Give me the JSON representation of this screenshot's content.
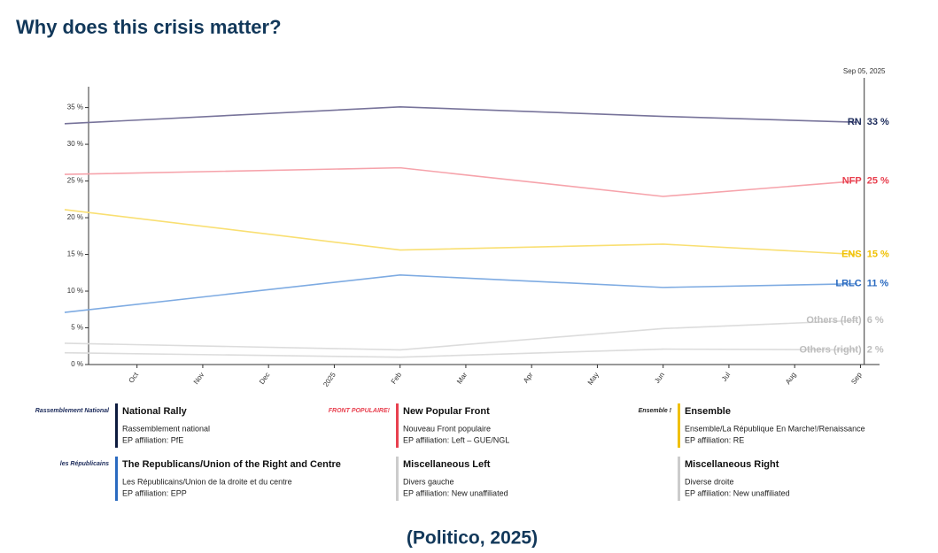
{
  "title": "Why does this crisis matter?",
  "caption": "(Politico, 2025)",
  "chart_data": {
    "type": "line",
    "cursor_label": "Sep 05, 2025",
    "x": [
      -1.1,
      4,
      8,
      10.95
    ],
    "xlim": [
      -1.1,
      11.25
    ],
    "xticks": [
      {
        "value": 0,
        "label": "Oct"
      },
      {
        "value": 1,
        "label": "Nov"
      },
      {
        "value": 2,
        "label": "Dec"
      },
      {
        "value": 3,
        "label": "2025"
      },
      {
        "value": 4,
        "label": "Feb"
      },
      {
        "value": 5,
        "label": "Mar"
      },
      {
        "value": 6,
        "label": "Apr"
      },
      {
        "value": 7,
        "label": "May"
      },
      {
        "value": 8,
        "label": "Jun"
      },
      {
        "value": 9,
        "label": "Jul"
      },
      {
        "value": 10,
        "label": "Aug"
      },
      {
        "value": 11,
        "label": "Sep"
      }
    ],
    "ylim": [
      0,
      37
    ],
    "yticks": [
      {
        "value": 0,
        "label": "0 %"
      },
      {
        "value": 5,
        "label": "5 %"
      },
      {
        "value": 10,
        "label": "10 %"
      },
      {
        "value": 15,
        "label": "15 %"
      },
      {
        "value": 20,
        "label": "20 %"
      },
      {
        "value": 25,
        "label": "25 %"
      },
      {
        "value": 30,
        "label": "30 %"
      },
      {
        "value": 35,
        "label": "35 %"
      }
    ],
    "series": [
      {
        "name": "RN",
        "color": "#77739a",
        "label_color": "#1b2a5a",
        "values": [
          32.8,
          35.1,
          33.8,
          33
        ],
        "value_labels": [
          null,
          null,
          null,
          "33 %"
        ]
      },
      {
        "name": "NFP",
        "color": "#f6a3ab",
        "label_color": "#e8404f",
        "values": [
          25.9,
          26.8,
          22.9,
          25
        ],
        "value_labels": [
          null,
          null,
          null,
          "25 %"
        ]
      },
      {
        "name": "ENS",
        "color": "#f9df72",
        "label_color": "#f0c000",
        "values": [
          21.1,
          15.6,
          16.4,
          15
        ],
        "value_labels": [
          null,
          null,
          null,
          "15 %"
        ]
      },
      {
        "name": "LRLC",
        "color": "#7eabe2",
        "label_color": "#2a6ac0",
        "values": [
          7.1,
          12.2,
          10.5,
          11
        ],
        "value_labels": [
          null,
          null,
          null,
          "11 %"
        ]
      },
      {
        "name": "Others (left)",
        "color": "#dcdcdc",
        "label_color": "#bdbdbd",
        "values": [
          2.9,
          2.0,
          4.9,
          6
        ],
        "value_labels": [
          null,
          null,
          null,
          "6 %"
        ]
      },
      {
        "name": "Others (right)",
        "color": "#dcdcdc",
        "label_color": "#bdbdbd",
        "values": [
          1.6,
          1.0,
          2.1,
          2
        ],
        "value_labels": [
          null,
          null,
          null,
          "2 %"
        ]
      }
    ]
  },
  "parties": [
    {
      "logo": "Rassemblement National",
      "logo_color": "#1b2a5a",
      "name": "National Rally",
      "subtitle": "Rassemblement national",
      "affiliation": "EP affiliation: PfE",
      "color": "#0d1b3e"
    },
    {
      "logo": "FRONT POPULAIRE!",
      "logo_color": "#e8404f",
      "name": "New Popular Front",
      "subtitle": "Nouveau Front populaire",
      "affiliation": "EP affiliation: Left – GUE/NGL",
      "color": "#e8404f"
    },
    {
      "logo": "Ensemble !",
      "logo_color": "#222",
      "name": "Ensemble",
      "subtitle": "Ensemble/La République En Marche!/Renaissance",
      "affiliation": "EP affiliation: RE",
      "color": "#f0c000"
    },
    {
      "logo": "les Républicains",
      "logo_color": "#1b2a5a",
      "name": "The Republicans/Union of the Right and Centre",
      "subtitle": "Les Républicains/Union de la droite et du centre",
      "affiliation": "EP affiliation: EPP",
      "color": "#2a6ac0"
    },
    {
      "logo": null,
      "logo_color": null,
      "name": "Miscellaneous Left",
      "subtitle": "Divers gauche",
      "affiliation": "EP affiliation: New unaffiliated",
      "color": "#cccccc"
    },
    {
      "logo": null,
      "logo_color": null,
      "name": "Miscellaneous Right",
      "subtitle": "Diverse droite",
      "affiliation": "EP affiliation: New unaffiliated",
      "color": "#cccccc"
    }
  ]
}
